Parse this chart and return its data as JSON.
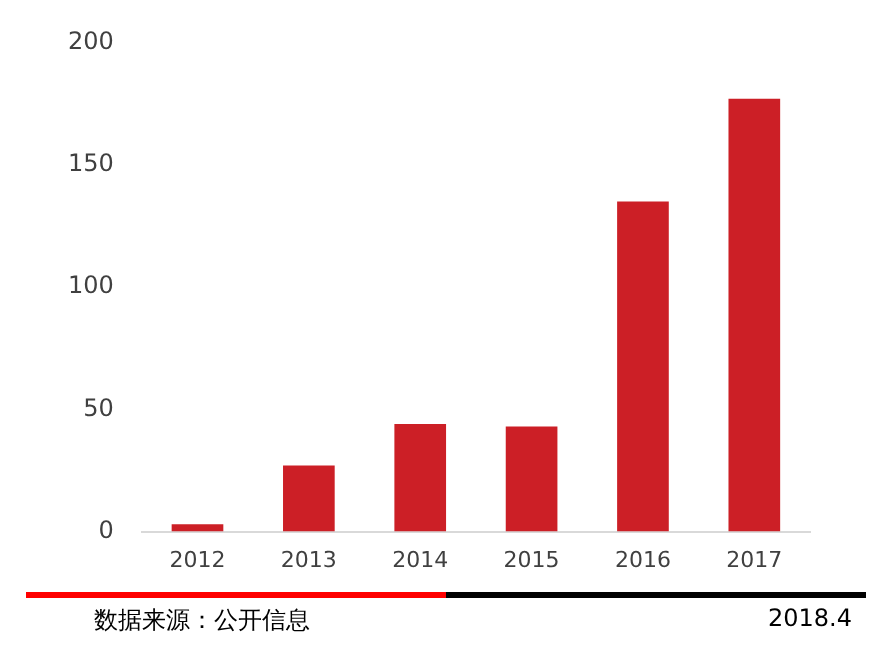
{
  "chart_data": {
    "type": "bar",
    "categories": [
      "2012",
      "2013",
      "2014",
      "2015",
      "2016",
      "2017"
    ],
    "values": [
      3,
      27,
      44,
      43,
      135,
      177
    ],
    "color": "#cc1f26",
    "ylim": [
      0,
      200
    ],
    "yticks": [
      0,
      50,
      100,
      150,
      200
    ],
    "grid": false,
    "legend": false,
    "annotations": [
      "数据来源：公开信息",
      "2018.4"
    ]
  }
}
